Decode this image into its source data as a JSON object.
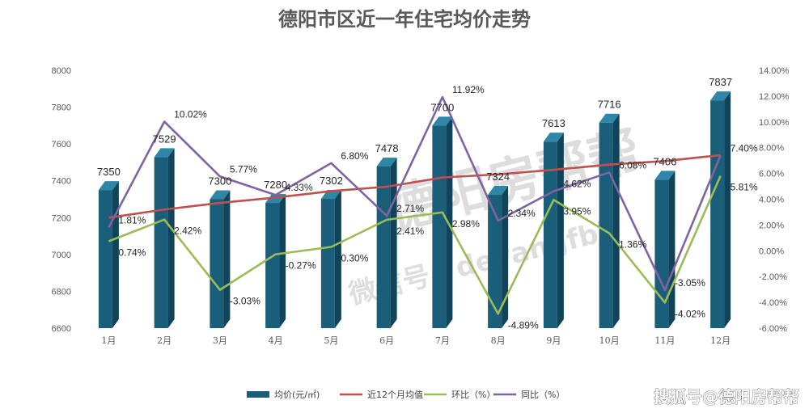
{
  "chart_data": {
    "type": "bar",
    "title": "德阳市区近一年住宅均价走势",
    "categories": [
      "1月",
      "2月",
      "3月",
      "4月",
      "5月",
      "6月",
      "7月",
      "8月",
      "9月",
      "10月",
      "11月",
      "12月"
    ],
    "series": [
      {
        "name": "均价(元/㎡)",
        "kind": "bar",
        "axis": "left",
        "values": [
          7350,
          7529,
          7300,
          7280,
          7302,
          7478,
          7700,
          7324,
          7613,
          7716,
          7406,
          7837
        ],
        "labels": [
          "7350",
          "7529",
          "7300",
          "7280",
          "7302",
          "7478",
          "7700",
          "7324",
          "7613",
          "7716",
          "7406",
          "7837"
        ]
      },
      {
        "name": "近12个月均值",
        "kind": "line",
        "axis": "left",
        "values": [
          7200,
          7244,
          7280,
          7309,
          7344,
          7368,
          7418,
          7435,
          7460,
          7488,
          7507,
          7540
        ]
      },
      {
        "name": "环比（%）",
        "kind": "line",
        "axis": "right",
        "values": [
          0.74,
          2.42,
          -3.03,
          -0.27,
          0.3,
          2.41,
          2.98,
          -4.89,
          3.95,
          1.36,
          -4.02,
          5.81
        ],
        "labels": [
          "0.74%",
          "2.42%",
          "-3.03%",
          "-0.27%",
          "0.30%",
          "2.41%",
          "2.98%",
          "-4.89%",
          "3.95%",
          "1.36%",
          "-4.02%",
          "5.81%"
        ]
      },
      {
        "name": "同比（%）",
        "kind": "line",
        "axis": "right",
        "values": [
          1.81,
          10.02,
          5.77,
          4.33,
          6.8,
          2.71,
          11.92,
          2.34,
          4.62,
          6.08,
          -3.05,
          7.4
        ],
        "labels": [
          "1.81%",
          "10.02%",
          "5.77%",
          "4.33%",
          "6.80%",
          "2.71%",
          "11.92%",
          "2.34%",
          "4.62%",
          "6.08%",
          "-3.05%",
          "7.40%"
        ]
      }
    ],
    "y_left": {
      "min": 6600,
      "max": 8000,
      "step": 200,
      "ticks": [
        "6600",
        "6800",
        "7000",
        "7200",
        "7400",
        "7600",
        "7800",
        "8000"
      ]
    },
    "y_right": {
      "min": -6,
      "max": 14,
      "step": 2,
      "ticks": [
        "-6.00%",
        "-4.00%",
        "-2.00%",
        "0.00%",
        "2.00%",
        "4.00%",
        "6.00%",
        "8.00%",
        "10.00%",
        "12.00%",
        "14.00%"
      ]
    },
    "legend_position": "bottom",
    "grid": false
  },
  "colors": {
    "bar_front": "#1b5e7a",
    "bar_side": "#10445a",
    "bar_top": "#2f86a6",
    "avg_line": "#c0504d",
    "mom_line": "#9bbb59",
    "yoy_line": "#8064a2",
    "text": "#595959"
  },
  "watermark": {
    "text": "德阳房帮帮",
    "sub": "微信号：deyangfbb"
  },
  "credit": "搜狐号@德阳房帮帮"
}
